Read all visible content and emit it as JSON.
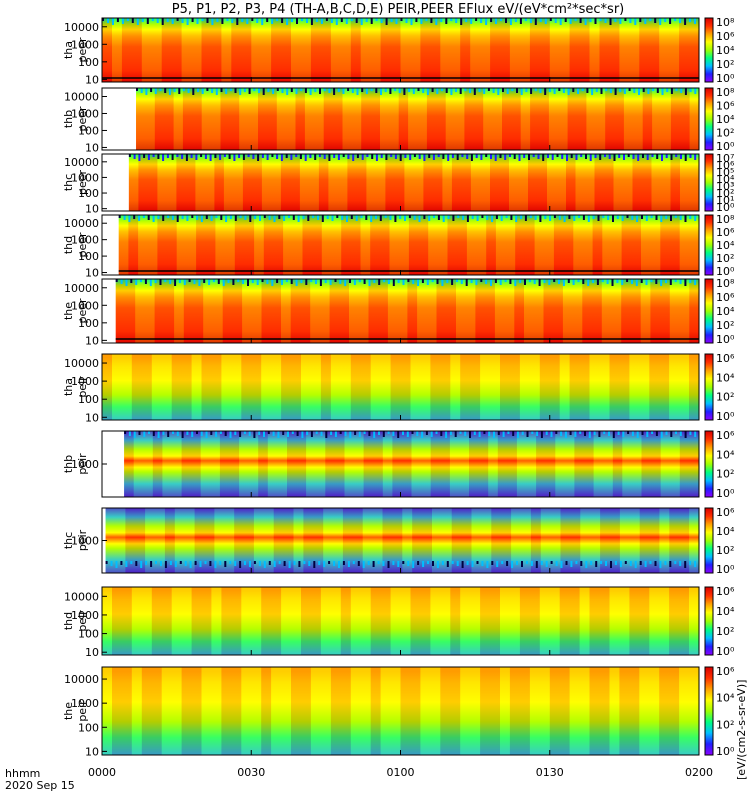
{
  "title": "P5, P1, P2, P3, P4 (TH-A,B,C,D,E) PEIR,PEER EFlux eV/(eV*cm²*sec*sr)",
  "footer": {
    "time_label": "hhmm",
    "date_label": "2020 Sep 15",
    "x_ticks": [
      "0000",
      "0030",
      "0100",
      "0130",
      "0200"
    ]
  },
  "colorbar_unit": "[eV/(cm2-s-sr-eV)]",
  "colormap": [
    "#8b00ff",
    "#1f1fff",
    "#00bfff",
    "#00ff7f",
    "#a0ff00",
    "#ffff00",
    "#ffa000",
    "#ff3000",
    "#d80000"
  ],
  "chart_data": [
    {
      "type": "heatmap",
      "panel": "tha peer",
      "label_top": "tha",
      "label_bottom": "peer",
      "yscale": "log",
      "y_ticks": [
        "10",
        "100",
        "1000",
        "10000"
      ],
      "x_range": [
        "0000",
        "0200"
      ],
      "colorbar_ticks": [
        "10⁰",
        "10²",
        "10⁴",
        "10⁶",
        "10⁸"
      ]
    },
    {
      "type": "heatmap",
      "panel": "thb peer",
      "label_top": "thb",
      "label_bottom": "peer",
      "yscale": "log",
      "y_ticks": [
        "10",
        "100",
        "1000",
        "10000"
      ],
      "x_range": [
        "0000",
        "0200"
      ],
      "colorbar_ticks": [
        "10⁰",
        "10²",
        "10⁴",
        "10⁶",
        "10⁸"
      ]
    },
    {
      "type": "heatmap",
      "panel": "thc peer",
      "label_top": "thc",
      "label_bottom": "peer",
      "yscale": "log",
      "y_ticks": [
        "10",
        "100",
        "1000",
        "10000"
      ],
      "x_range": [
        "0000",
        "0200"
      ],
      "colorbar_ticks": [
        "10⁰",
        "10¹",
        "10²",
        "10³",
        "10⁴",
        "10⁵",
        "10⁶",
        "10⁷"
      ]
    },
    {
      "type": "heatmap",
      "panel": "thd peer",
      "label_top": "thd",
      "label_bottom": "peer",
      "yscale": "log",
      "y_ticks": [
        "10",
        "100",
        "1000",
        "10000"
      ],
      "x_range": [
        "0000",
        "0200"
      ],
      "colorbar_ticks": [
        "10⁰",
        "10²",
        "10⁴",
        "10⁶",
        "10⁸"
      ]
    },
    {
      "type": "heatmap",
      "panel": "the peer",
      "label_top": "the",
      "label_bottom": "peer",
      "yscale": "log",
      "y_ticks": [
        "10",
        "100",
        "1000",
        "10000"
      ],
      "x_range": [
        "0000",
        "0200"
      ],
      "colorbar_ticks": [
        "10⁰",
        "10²",
        "10⁴",
        "10⁶",
        "10⁸"
      ]
    },
    {
      "type": "heatmap",
      "panel": "tha peir",
      "label_top": "tha",
      "label_bottom": "peir",
      "yscale": "log",
      "y_ticks": [
        "10",
        "100",
        "1000",
        "10000"
      ],
      "x_range": [
        "0000",
        "0200"
      ],
      "colorbar_ticks": [
        "10⁰",
        "10²",
        "10⁴",
        "10⁶"
      ]
    },
    {
      "type": "heatmap",
      "panel": "thb peir",
      "label_top": "thb",
      "label_bottom": "peir",
      "yscale": "log",
      "y_ticks": [
        "1000"
      ],
      "x_range": [
        "0000",
        "0200"
      ],
      "colorbar_ticks": [
        "10⁰",
        "10²",
        "10⁴",
        "10⁶"
      ]
    },
    {
      "type": "heatmap",
      "panel": "thc peir",
      "label_top": "thc",
      "label_bottom": "peir",
      "yscale": "log",
      "y_ticks": [
        "1000"
      ],
      "x_range": [
        "0000",
        "0200"
      ],
      "colorbar_ticks": [
        "10⁰",
        "10²",
        "10⁴",
        "10⁶"
      ]
    },
    {
      "type": "heatmap",
      "panel": "thd peir",
      "label_top": "thd",
      "label_bottom": "peir",
      "yscale": "log",
      "y_ticks": [
        "10",
        "100",
        "1000",
        "10000"
      ],
      "x_range": [
        "0000",
        "0200"
      ],
      "colorbar_ticks": [
        "10⁰",
        "10²",
        "10⁴",
        "10⁶"
      ]
    },
    {
      "type": "heatmap",
      "panel": "the peir",
      "label_top": "the",
      "label_bottom": "peir",
      "yscale": "log",
      "y_ticks": [
        "10",
        "100",
        "1000",
        "10000"
      ],
      "x_range": [
        "0000",
        "0200"
      ],
      "colorbar_ticks": [
        "10⁰",
        "10²",
        "10⁴",
        "10⁶"
      ]
    }
  ]
}
